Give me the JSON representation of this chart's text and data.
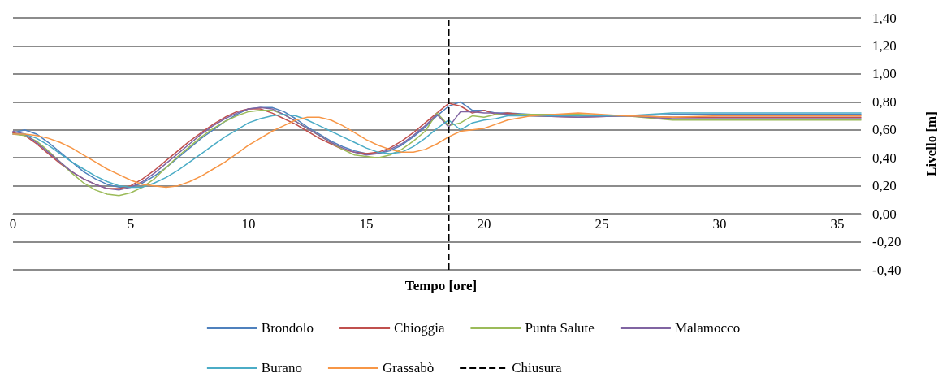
{
  "chart_data": {
    "type": "line",
    "xlabel": "Tempo [ore]",
    "ylabel": "Livello [m]",
    "x": [
      0,
      0.5,
      1,
      1.5,
      2,
      2.5,
      3,
      3.5,
      4,
      4.5,
      5,
      5.5,
      6,
      6.5,
      7,
      7.5,
      8,
      8.5,
      9,
      9.5,
      10,
      10.5,
      11,
      11.5,
      12,
      12.5,
      13,
      13.5,
      14,
      14.5,
      15,
      15.5,
      16,
      16.5,
      17,
      17.5,
      18,
      18.5,
      19,
      19.5,
      20,
      20.5,
      21,
      22,
      24,
      26,
      28,
      30,
      32,
      34,
      36
    ],
    "series": [
      {
        "name": "Brondolo",
        "color": "#4f81bd",
        "values": [
          0.58,
          0.6,
          0.57,
          0.51,
          0.44,
          0.37,
          0.3,
          0.25,
          0.21,
          0.19,
          0.19,
          0.22,
          0.27,
          0.33,
          0.4,
          0.47,
          0.54,
          0.6,
          0.66,
          0.71,
          0.75,
          0.76,
          0.76,
          0.73,
          0.68,
          0.62,
          0.57,
          0.52,
          0.48,
          0.45,
          0.43,
          0.43,
          0.45,
          0.49,
          0.55,
          0.62,
          0.7,
          0.77,
          0.8,
          0.74,
          0.74,
          0.72,
          0.72,
          0.71,
          0.7,
          0.7,
          0.71,
          0.71,
          0.71,
          0.71,
          0.71
        ]
      },
      {
        "name": "Chioggia",
        "color": "#c0504d",
        "values": [
          0.58,
          0.56,
          0.5,
          0.43,
          0.36,
          0.3,
          0.25,
          0.21,
          0.18,
          0.18,
          0.2,
          0.25,
          0.31,
          0.38,
          0.45,
          0.52,
          0.58,
          0.64,
          0.69,
          0.73,
          0.75,
          0.75,
          0.72,
          0.68,
          0.64,
          0.59,
          0.54,
          0.5,
          0.46,
          0.44,
          0.43,
          0.44,
          0.47,
          0.52,
          0.58,
          0.65,
          0.72,
          0.79,
          0.77,
          0.72,
          0.74,
          0.71,
          0.72,
          0.7,
          0.69,
          0.7,
          0.69,
          0.69,
          0.69,
          0.69,
          0.69
        ]
      },
      {
        "name": "Punta Salute",
        "color": "#9bbb59",
        "values": [
          0.57,
          0.56,
          0.52,
          0.45,
          0.37,
          0.29,
          0.22,
          0.17,
          0.14,
          0.13,
          0.15,
          0.19,
          0.25,
          0.33,
          0.41,
          0.48,
          0.55,
          0.61,
          0.66,
          0.7,
          0.73,
          0.74,
          0.74,
          0.71,
          0.66,
          0.61,
          0.56,
          0.51,
          0.46,
          0.42,
          0.41,
          0.4,
          0.42,
          0.46,
          0.52,
          0.59,
          0.72,
          0.63,
          0.65,
          0.7,
          0.69,
          0.71,
          0.71,
          0.71,
          0.71,
          0.7,
          0.67,
          0.67,
          0.67,
          0.67,
          0.67
        ]
      },
      {
        "name": "Malamocco",
        "color": "#8064a2",
        "values": [
          0.59,
          0.57,
          0.51,
          0.44,
          0.37,
          0.3,
          0.25,
          0.21,
          0.18,
          0.17,
          0.19,
          0.23,
          0.29,
          0.36,
          0.43,
          0.5,
          0.57,
          0.63,
          0.68,
          0.72,
          0.75,
          0.76,
          0.75,
          0.71,
          0.66,
          0.61,
          0.56,
          0.51,
          0.47,
          0.44,
          0.42,
          0.43,
          0.46,
          0.5,
          0.56,
          0.63,
          0.71,
          0.62,
          0.73,
          0.73,
          0.72,
          0.72,
          0.71,
          0.7,
          0.69,
          0.7,
          0.68,
          0.68,
          0.68,
          0.68,
          0.68
        ]
      },
      {
        "name": "Burano",
        "color": "#4bacc6",
        "values": [
          0.57,
          0.57,
          0.54,
          0.49,
          0.43,
          0.37,
          0.32,
          0.27,
          0.23,
          0.2,
          0.19,
          0.19,
          0.22,
          0.26,
          0.31,
          0.37,
          0.43,
          0.49,
          0.55,
          0.6,
          0.65,
          0.68,
          0.7,
          0.71,
          0.7,
          0.67,
          0.63,
          0.59,
          0.55,
          0.51,
          0.47,
          0.44,
          0.43,
          0.44,
          0.48,
          0.54,
          0.61,
          0.67,
          0.6,
          0.65,
          0.67,
          0.68,
          0.7,
          0.7,
          0.7,
          0.7,
          0.72,
          0.72,
          0.72,
          0.72,
          0.72
        ]
      },
      {
        "name": "Grassabò",
        "color": "#f79646",
        "values": [
          0.57,
          0.57,
          0.56,
          0.54,
          0.51,
          0.47,
          0.42,
          0.37,
          0.32,
          0.28,
          0.24,
          0.21,
          0.2,
          0.19,
          0.2,
          0.23,
          0.27,
          0.32,
          0.37,
          0.43,
          0.49,
          0.54,
          0.59,
          0.63,
          0.67,
          0.69,
          0.69,
          0.67,
          0.63,
          0.58,
          0.53,
          0.49,
          0.46,
          0.44,
          0.44,
          0.46,
          0.5,
          0.55,
          0.59,
          0.6,
          0.61,
          0.64,
          0.67,
          0.7,
          0.72,
          0.7,
          0.69,
          0.7,
          0.7,
          0.7,
          0.7
        ]
      }
    ],
    "ref_lines": [
      {
        "axis": "x",
        "value": 18.5,
        "label": "Chiusura",
        "color": "#000000",
        "line_style": "dashed"
      }
    ],
    "xlim": [
      0,
      36
    ],
    "xticks": [
      0,
      5,
      10,
      15,
      20,
      25,
      30,
      35
    ],
    "ylim": [
      -0.4,
      1.4
    ],
    "yticks": [
      {
        "value": -0.4,
        "label": "-0,40"
      },
      {
        "value": -0.2,
        "label": "-0,20"
      },
      {
        "value": 0,
        "label": "0,00"
      },
      {
        "value": 0.2,
        "label": "0,20"
      },
      {
        "value": 0.4,
        "label": "0,40"
      },
      {
        "value": 0.6,
        "label": "0,60"
      },
      {
        "value": 0.8,
        "label": "0,80"
      },
      {
        "value": 1.0,
        "label": "1,00"
      },
      {
        "value": 1.2,
        "label": "1,20"
      },
      {
        "value": 1.4,
        "label": "1,40"
      }
    ],
    "grid": "y",
    "legend": "bottom",
    "marker": "none",
    "line_style": "solid"
  }
}
